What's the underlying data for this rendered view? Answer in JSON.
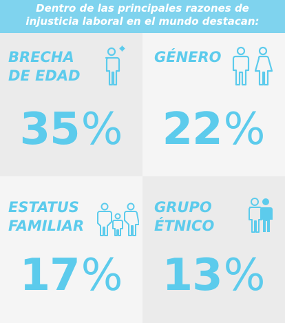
{
  "header": {
    "line1": "Dentro de las principales razones de",
    "line2": "injusticia laboral en el mundo destacan:"
  },
  "colors": {
    "accent": "#5ccbec",
    "header_bg": "#7fd3ee",
    "panel_dark": "#ebebeb",
    "panel_light": "#f5f5f5"
  },
  "cards": [
    {
      "label_lines": [
        "BRECHA",
        "DE EDAD"
      ],
      "value": "35",
      "unit": "%",
      "icon": "elderly-person-icon"
    },
    {
      "label_lines": [
        "GÉNERO"
      ],
      "value": "22",
      "unit": "%",
      "icon": "man-woman-icon"
    },
    {
      "label_lines": [
        "ESTATUS",
        "FAMILIAR"
      ],
      "value": "17",
      "unit": "%",
      "icon": "family-icon"
    },
    {
      "label_lines": [
        "GRUPO",
        "ÉTNICO"
      ],
      "value": "13",
      "unit": "%",
      "icon": "two-people-icon"
    }
  ]
}
